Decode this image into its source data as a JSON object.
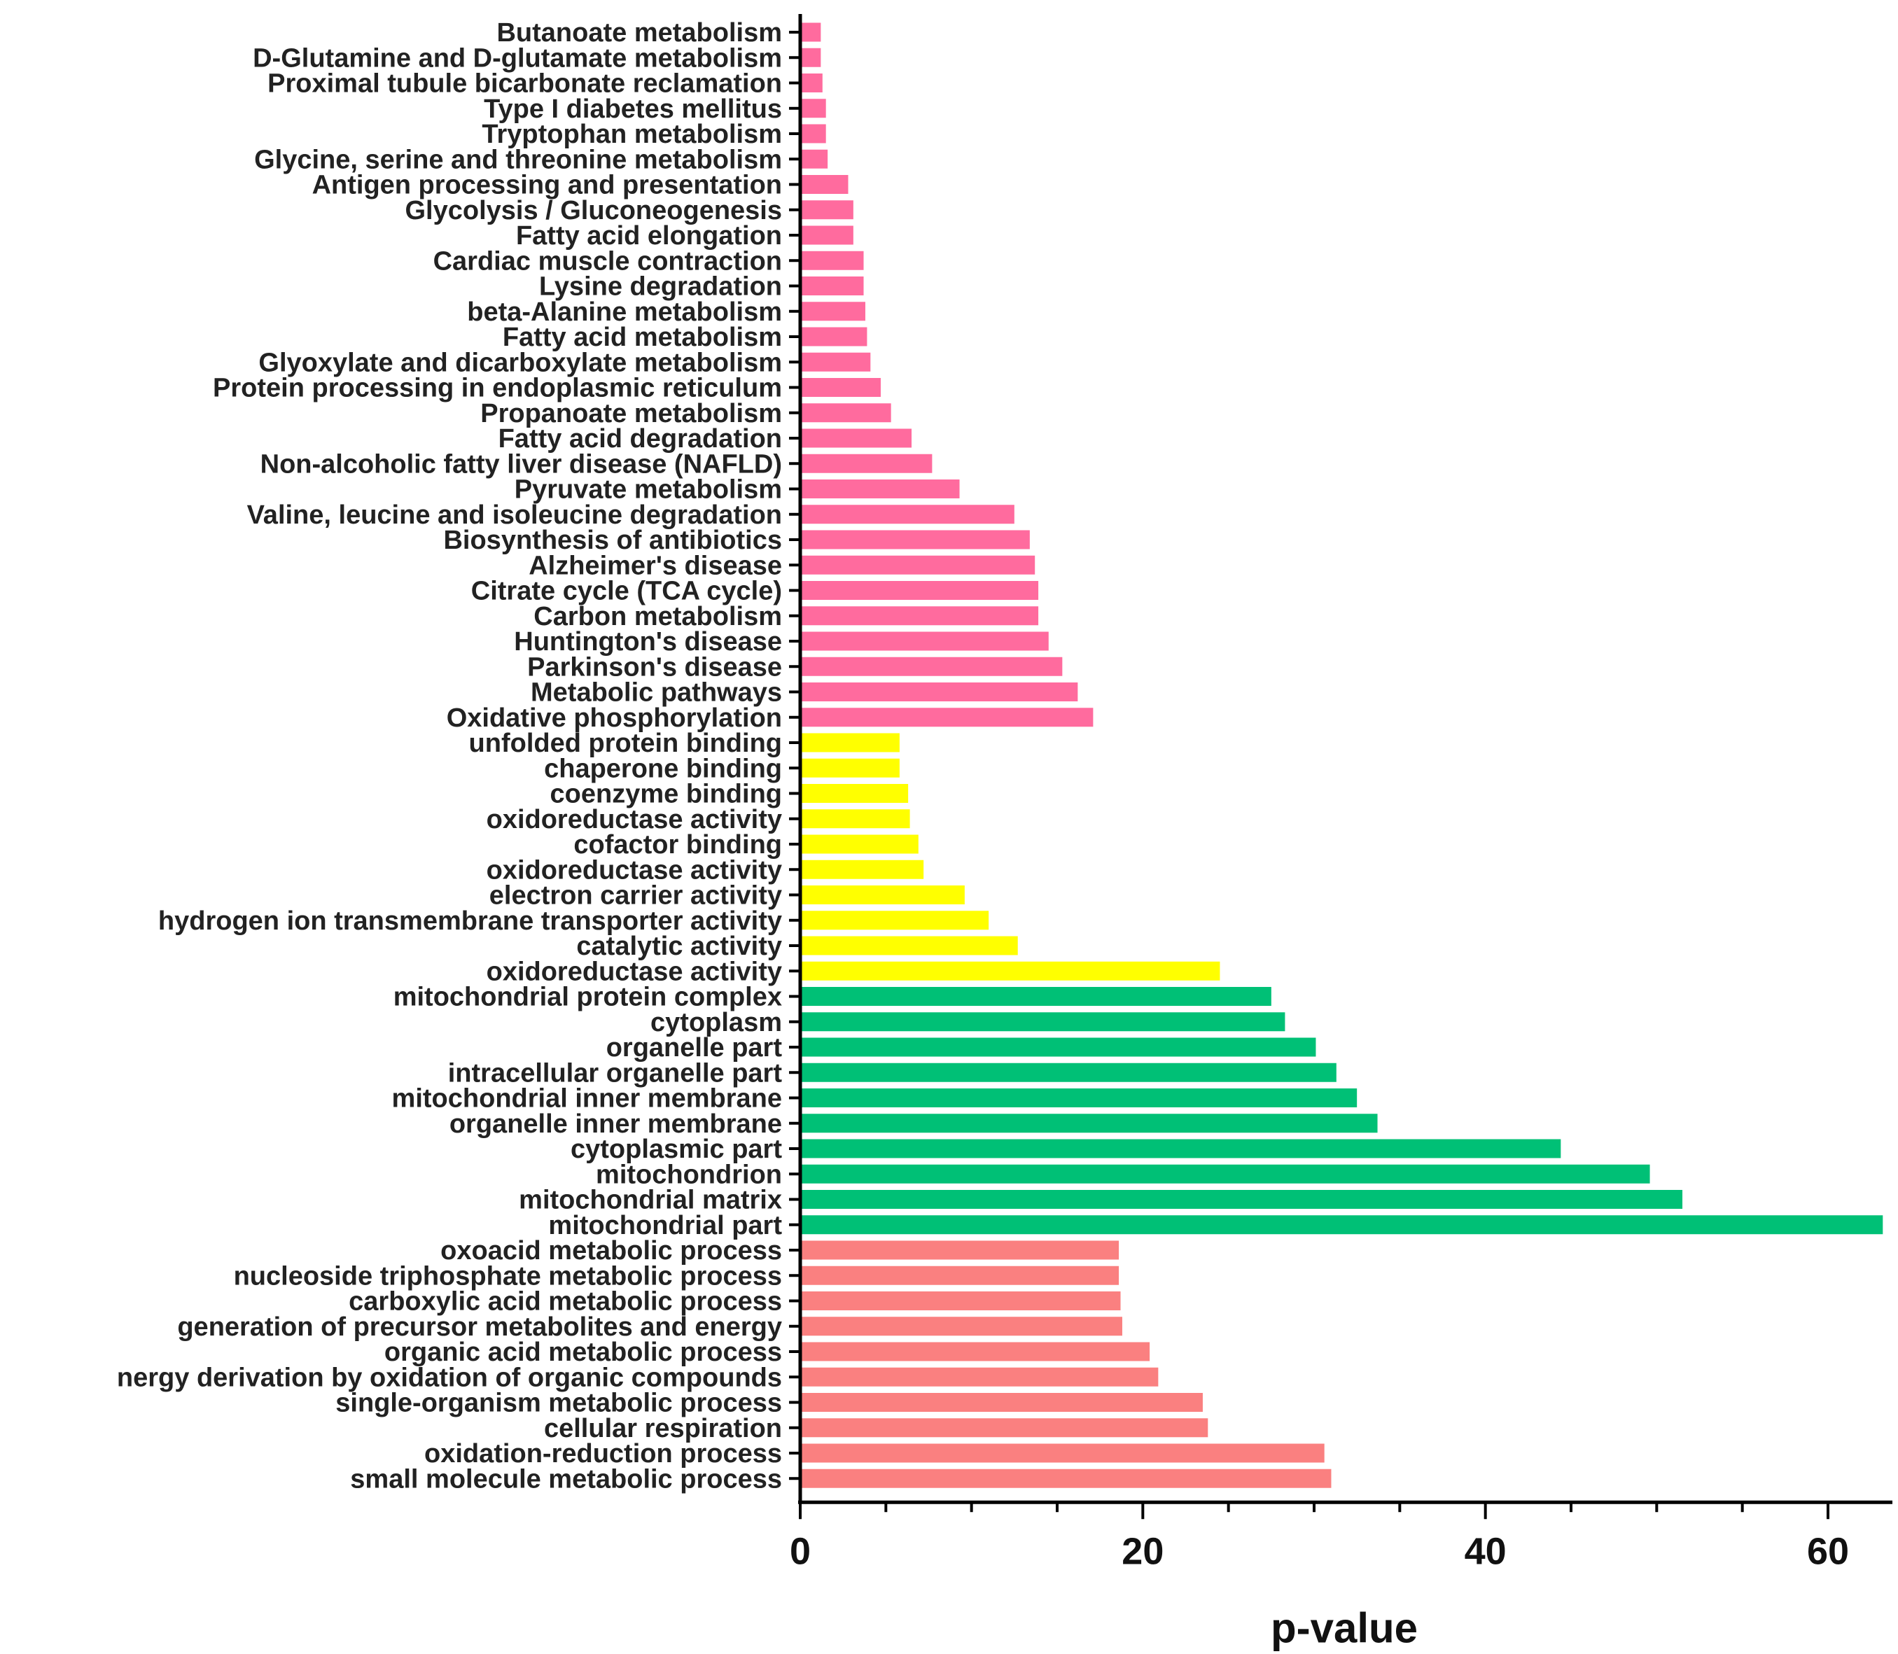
{
  "chart_data": {
    "type": "bar",
    "orientation": "horizontal",
    "xlabel": "p-value",
    "ylabel": "",
    "xlim": [
      0,
      65
    ],
    "xticks": [
      0,
      20,
      40,
      60
    ],
    "grid": false,
    "legend": "none",
    "group_colors": {
      "kegg": "#FF6B9E",
      "molecular_function": "#FFFF00",
      "cellular_component": "#00C076",
      "biological_process": "#FA8080"
    },
    "bars": [
      {
        "label": "Butanoate metabolism",
        "value": 1.2,
        "group": "kegg"
      },
      {
        "label": "D-Glutamine and D-glutamate metabolism",
        "value": 1.2,
        "group": "kegg"
      },
      {
        "label": "Proximal tubule bicarbonate reclamation",
        "value": 1.3,
        "group": "kegg"
      },
      {
        "label": "Type I diabetes mellitus",
        "value": 1.5,
        "group": "kegg"
      },
      {
        "label": "Tryptophan metabolism",
        "value": 1.5,
        "group": "kegg"
      },
      {
        "label": "Glycine, serine and threonine metabolism",
        "value": 1.6,
        "group": "kegg"
      },
      {
        "label": "Antigen processing and presentation",
        "value": 2.8,
        "group": "kegg"
      },
      {
        "label": "Glycolysis / Gluconeogenesis",
        "value": 3.1,
        "group": "kegg"
      },
      {
        "label": "Fatty acid elongation",
        "value": 3.1,
        "group": "kegg"
      },
      {
        "label": "Cardiac muscle contraction",
        "value": 3.7,
        "group": "kegg"
      },
      {
        "label": "Lysine degradation",
        "value": 3.7,
        "group": "kegg"
      },
      {
        "label": "beta-Alanine metabolism",
        "value": 3.8,
        "group": "kegg"
      },
      {
        "label": "Fatty acid metabolism",
        "value": 3.9,
        "group": "kegg"
      },
      {
        "label": "Glyoxylate and dicarboxylate metabolism",
        "value": 4.1,
        "group": "kegg"
      },
      {
        "label": "Protein processing in endoplasmic reticulum",
        "value": 4.7,
        "group": "kegg"
      },
      {
        "label": "Propanoate metabolism",
        "value": 5.3,
        "group": "kegg"
      },
      {
        "label": "Fatty acid degradation",
        "value": 6.5,
        "group": "kegg"
      },
      {
        "label": "Non-alcoholic fatty liver disease (NAFLD)",
        "value": 7.7,
        "group": "kegg"
      },
      {
        "label": "Pyruvate metabolism",
        "value": 9.3,
        "group": "kegg"
      },
      {
        "label": "Valine, leucine and isoleucine degradation",
        "value": 12.5,
        "group": "kegg"
      },
      {
        "label": "Biosynthesis of antibiotics",
        "value": 13.4,
        "group": "kegg"
      },
      {
        "label": "Alzheimer's disease",
        "value": 13.7,
        "group": "kegg"
      },
      {
        "label": "Citrate cycle (TCA cycle)",
        "value": 13.9,
        "group": "kegg"
      },
      {
        "label": "Carbon metabolism",
        "value": 13.9,
        "group": "kegg"
      },
      {
        "label": "Huntington's disease",
        "value": 14.5,
        "group": "kegg"
      },
      {
        "label": "Parkinson's disease",
        "value": 15.3,
        "group": "kegg"
      },
      {
        "label": "Metabolic pathways",
        "value": 16.2,
        "group": "kegg"
      },
      {
        "label": "Oxidative phosphorylation",
        "value": 17.1,
        "group": "kegg"
      },
      {
        "label": "unfolded protein binding",
        "value": 5.8,
        "group": "molecular_function"
      },
      {
        "label": "chaperone binding",
        "value": 5.8,
        "group": "molecular_function"
      },
      {
        "label": "coenzyme binding",
        "value": 6.3,
        "group": "molecular_function"
      },
      {
        "label": "oxidoreductase activity",
        "value": 6.4,
        "group": "molecular_function"
      },
      {
        "label": "cofactor binding",
        "value": 6.9,
        "group": "molecular_function"
      },
      {
        "label": "oxidoreductase activity",
        "value": 7.2,
        "group": "molecular_function"
      },
      {
        "label": "electron carrier activity",
        "value": 9.6,
        "group": "molecular_function"
      },
      {
        "label": "hydrogen ion transmembrane transporter activity",
        "value": 11.0,
        "group": "molecular_function"
      },
      {
        "label": "catalytic activity",
        "value": 12.7,
        "group": "molecular_function"
      },
      {
        "label": "oxidoreductase activity",
        "value": 24.5,
        "group": "molecular_function"
      },
      {
        "label": "mitochondrial protein complex",
        "value": 27.5,
        "group": "cellular_component"
      },
      {
        "label": "cytoplasm",
        "value": 28.3,
        "group": "cellular_component"
      },
      {
        "label": "organelle part",
        "value": 30.1,
        "group": "cellular_component"
      },
      {
        "label": "intracellular organelle part",
        "value": 31.3,
        "group": "cellular_component"
      },
      {
        "label": "mitochondrial inner membrane",
        "value": 32.5,
        "group": "cellular_component"
      },
      {
        "label": "organelle inner membrane",
        "value": 33.7,
        "group": "cellular_component"
      },
      {
        "label": "cytoplasmic part",
        "value": 44.4,
        "group": "cellular_component"
      },
      {
        "label": "mitochondrion",
        "value": 49.6,
        "group": "cellular_component"
      },
      {
        "label": "mitochondrial matrix",
        "value": 51.5,
        "group": "cellular_component"
      },
      {
        "label": "mitochondrial part",
        "value": 63.2,
        "group": "cellular_component"
      },
      {
        "label": "oxoacid metabolic process",
        "value": 18.6,
        "group": "biological_process"
      },
      {
        "label": "nucleoside triphosphate metabolic process",
        "value": 18.6,
        "group": "biological_process"
      },
      {
        "label": "carboxylic acid metabolic process",
        "value": 18.7,
        "group": "biological_process"
      },
      {
        "label": "generation of precursor metabolites and energy",
        "value": 18.8,
        "group": "biological_process"
      },
      {
        "label": "organic acid metabolic process",
        "value": 20.4,
        "group": "biological_process"
      },
      {
        "label": "nergy derivation by oxidation of organic compounds",
        "value": 20.9,
        "group": "biological_process"
      },
      {
        "label": "single-organism metabolic process",
        "value": 23.5,
        "group": "biological_process"
      },
      {
        "label": "cellular respiration",
        "value": 23.8,
        "group": "biological_process"
      },
      {
        "label": "oxidation-reduction process",
        "value": 30.6,
        "group": "biological_process"
      },
      {
        "label": "small molecule metabolic process",
        "value": 31.0,
        "group": "biological_process"
      }
    ]
  }
}
